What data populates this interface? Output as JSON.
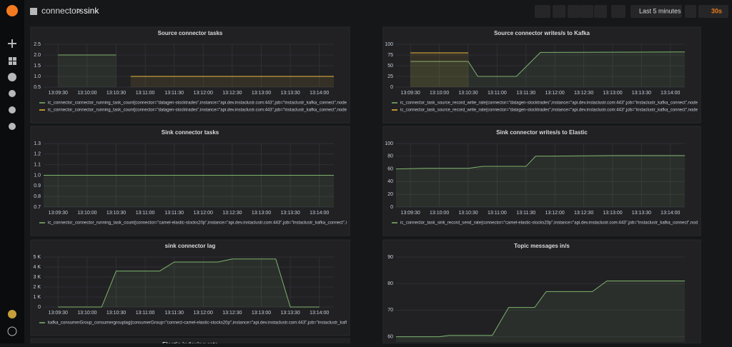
{
  "header": {
    "breadcrumb": "connectors",
    "separator": ">",
    "dashboard": "sink",
    "time_range": "Last 5 minutes",
    "refresh": "30s"
  },
  "chart_data": [
    {
      "type": "line",
      "title": "Source connector tasks",
      "x": [
        "13:09:30",
        "13:10:30",
        "13:10:45",
        "13:14:15"
      ],
      "xlim": [
        "13:09:15",
        "13:14:15"
      ],
      "xticks": [
        "13:09:30",
        "13:10:00",
        "13:10:30",
        "13:11:00",
        "13:11:30",
        "13:12:00",
        "13:12:30",
        "13:13:00",
        "13:13:30",
        "13:14:00"
      ],
      "ylim": [
        0.5,
        2.5
      ],
      "yticks": [
        0.5,
        {
          "value": 1,
          "label": "1.0"
        },
        1.5,
        {
          "value": 2,
          "label": "2.0"
        },
        2.5
      ],
      "grid": true,
      "series": [
        {
          "name": "ic_connector_connector_running_task_count{connector=\"datagen-stocktrades\",instance=\"api.dev.instaclustr.com:443\",job=\"instaclustr_kafka_connect\",node",
          "color": "#7eb26d",
          "values": [
            2,
            2,
            null,
            null
          ]
        },
        {
          "name": "ic_connector_connector_running_task_count{connector=\"datagen-stocktrades\",instance=\"api.dev.instaclustr.com:443\",job=\"instaclustr_kafka_connect\",node",
          "color": "#eab839",
          "values": [
            null,
            null,
            1,
            1
          ]
        }
      ]
    },
    {
      "type": "line",
      "title": "Source connector writes/s to Kafka",
      "x": [
        "13:09:30",
        "13:10:30",
        "13:10:40",
        "13:11:20",
        "13:11:45",
        "13:14:15"
      ],
      "xlim": [
        "13:09:15",
        "13:14:15"
      ],
      "xticks": [
        "13:09:30",
        "13:10:00",
        "13:10:30",
        "13:11:00",
        "13:11:30",
        "13:12:00",
        "13:12:30",
        "13:13:00",
        "13:13:30",
        "13:14:00"
      ],
      "ylim": [
        0,
        100
      ],
      "yticks": [
        0,
        25,
        50,
        75,
        100
      ],
      "grid": true,
      "series": [
        {
          "name": "ic_connector_task_source_record_write_rate{connector=\"datagen-stocktrades\",instance=\"api.dev.instaclustr.com:443\",job=\"instaclustr_kafka_connect\",node",
          "color": "#7eb26d",
          "values": [
            60,
            60,
            25,
            25,
            81,
            82
          ]
        },
        {
          "name": "ic_connector_task_source_record_write_rate{connector=\"datagen-stocktrades\",instance=\"api.dev.instaclustr.com:443\",job=\"instaclustr_kafka_connect\",node",
          "color": "#eab839",
          "values": [
            80,
            80,
            null,
            null,
            null,
            null
          ]
        }
      ]
    },
    {
      "type": "line",
      "title": "Sink connector tasks",
      "x": [
        "13:09:15",
        "13:14:15"
      ],
      "xlim": [
        "13:09:15",
        "13:14:15"
      ],
      "xticks": [
        "13:09:30",
        "13:10:00",
        "13:10:30",
        "13:11:00",
        "13:11:30",
        "13:12:00",
        "13:12:30",
        "13:13:00",
        "13:13:30",
        "13:14:00"
      ],
      "ylim": [
        0.7,
        1.3
      ],
      "yticks": [
        0.7,
        0.8,
        0.9,
        {
          "value": 1,
          "label": "1.0"
        },
        1.1,
        1.2,
        1.3
      ],
      "grid": true,
      "series": [
        {
          "name": "ic_connector_connector_running_task_count{connector=\"camel-elastic-stocks20p\",instance=\"api.dev.instaclustr.com:443\",job=\"instaclustr_kafka_connect\",i",
          "color": "#7eb26d",
          "values": [
            1,
            1
          ]
        }
      ]
    },
    {
      "type": "line",
      "title": "Sink connector writes/s to Elastic",
      "x": [
        "13:09:15",
        "13:09:45",
        "13:10:30",
        "13:10:45",
        "13:11:30",
        "13:11:40",
        "13:13:00",
        "13:14:15"
      ],
      "xlim": [
        "13:09:15",
        "13:14:15"
      ],
      "xticks": [
        "13:09:30",
        "13:10:00",
        "13:10:30",
        "13:11:00",
        "13:11:30",
        "13:12:00",
        "13:12:30",
        "13:13:00",
        "13:13:30",
        "13:14:00"
      ],
      "ylim": [
        0,
        100
      ],
      "yticks": [
        0,
        20,
        40,
        60,
        80,
        100
      ],
      "grid": true,
      "series": [
        {
          "name": "ic_connector_task_sink_record_send_rate{connector=\"camel-elastic-stocks20p\",instance=\"api.dev.instaclustr.com:443\",job=\"instaclustr_kafka_connect\",nod",
          "color": "#7eb26d",
          "values": [
            60,
            61,
            61,
            64,
            64,
            80,
            81,
            81
          ]
        }
      ]
    },
    {
      "type": "line",
      "title": "sink connector lag",
      "x": [
        "13:09:30",
        "13:10:15",
        "13:10:30",
        "13:11:15",
        "13:11:30",
        "13:12:15",
        "13:12:30",
        "13:13:15",
        "13:13:30",
        "13:14:00"
      ],
      "xlim": [
        "13:09:15",
        "13:14:15"
      ],
      "xticks": [
        "13:09:30",
        "13:10:00",
        "13:10:30",
        "13:11:00",
        "13:11:30",
        "13:12:00",
        "13:12:30",
        "13:13:00",
        "13:13:30",
        "13:14:00"
      ],
      "ylim": [
        0,
        5000
      ],
      "yticks": [
        0,
        {
          "value": 1000,
          "label": "1 K"
        },
        {
          "value": 2000,
          "label": "2 K"
        },
        {
          "value": 3000,
          "label": "3 K"
        },
        {
          "value": 4000,
          "label": "4 K"
        },
        {
          "value": 5000,
          "label": "5 K"
        }
      ],
      "grid": true,
      "series": [
        {
          "name": "kafka_consumerGroup_consumergrouplag{consumerGroup=\"connect-camel-elastic-stocks20p\",instance=\"api.dev.instaclustr.com:443\",job=\"instaclustr_kafl",
          "color": "#7eb26d",
          "values": [
            0,
            0,
            3600,
            3600,
            4500,
            4500,
            4800,
            4800,
            0,
            0
          ]
        }
      ]
    },
    {
      "type": "line",
      "title": "Topic messages in/s",
      "x": [
        "13:09:15",
        "13:10:00",
        "13:10:10",
        "13:10:55",
        "13:11:12",
        "13:11:39",
        "13:11:51",
        "13:12:39",
        "13:12:54",
        "13:14:15"
      ],
      "xlim": [
        "13:09:15",
        "13:14:15"
      ],
      "ylim": [
        58,
        90
      ],
      "yticks": [
        60,
        70,
        80,
        90
      ],
      "grid": true,
      "series": [
        {
          "color": "#7eb26d",
          "values": [
            60,
            60,
            60.5,
            60.5,
            71,
            71,
            77,
            77,
            81,
            81
          ]
        }
      ]
    },
    {
      "title": "Elastic indexing rate"
    }
  ]
}
